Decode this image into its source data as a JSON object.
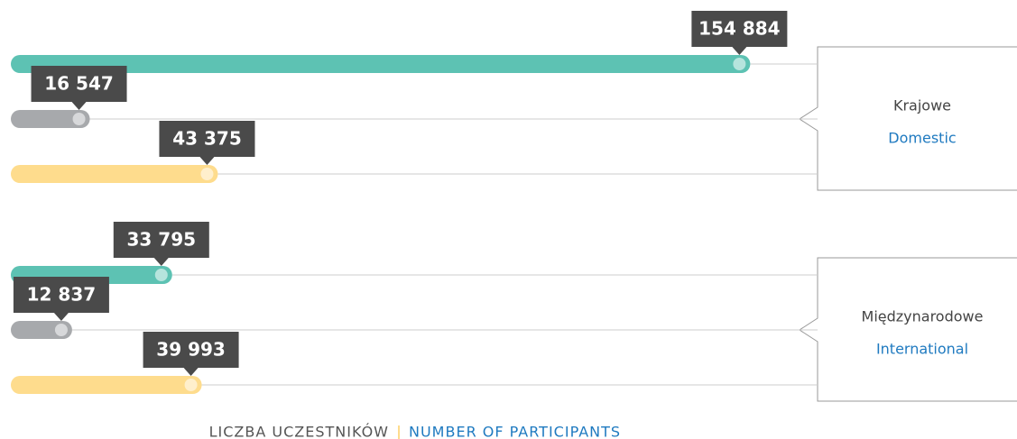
{
  "chart_data": {
    "type": "bar",
    "orientation": "horizontal",
    "categories": [
      "Krajowe",
      "Międzynarodowe"
    ],
    "categories_en": [
      "Domestic",
      "International"
    ],
    "series": [
      {
        "color": "#5dc2b3",
        "values": [
          154884,
          33795
        ],
        "value_labels": [
          "154 884",
          "33 795"
        ]
      },
      {
        "color": "#a7a9ac",
        "values": [
          16547,
          12837
        ],
        "value_labels": [
          "16 547",
          "12 837"
        ]
      },
      {
        "color": "#fedc8d",
        "values": [
          43375,
          39993
        ],
        "value_labels": [
          "43 375",
          "39 993"
        ]
      }
    ],
    "xlim": [
      0,
      155000
    ],
    "x_label": "LICZBA UCZESTNIKÓW",
    "x_label_en": "NUMBER OF PARTICIPANTS"
  }
}
